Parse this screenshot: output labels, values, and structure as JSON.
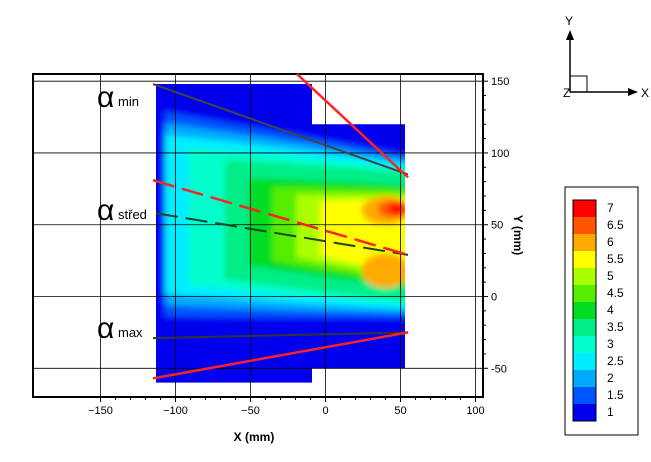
{
  "chart_data": {
    "type": "heatmap",
    "xlabel": "X (mm)",
    "ylabel": "Y (mm)",
    "xlim": [
      -195,
      105
    ],
    "ylim": [
      -70,
      155
    ],
    "x_ticks": [
      -150,
      -100,
      -50,
      0,
      50,
      100
    ],
    "y_ticks": [
      -50,
      0,
      50,
      100,
      150
    ],
    "grid": true,
    "x_tick_labels": [
      "−150",
      "−100",
      "−50",
      "0",
      "50",
      "100"
    ],
    "y_tick_labels": [
      "-50",
      "0",
      "50",
      "100",
      "150"
    ],
    "field": {
      "region": [
        [
          -113,
          148
        ],
        [
          -9,
          148
        ],
        [
          -9,
          120
        ],
        [
          53,
          120
        ],
        [
          53,
          -50
        ],
        [
          -9,
          -50
        ],
        [
          -9,
          -60
        ],
        [
          -113,
          -60
        ]
      ],
      "description_levels_min": 1,
      "description_levels_max": 7
    },
    "legend": {
      "placement": "right",
      "levels": [
        {
          "label": "7",
          "color": "#ff0000"
        },
        {
          "label": "6.5",
          "color": "#ff5500"
        },
        {
          "label": "6",
          "color": "#ffaa00"
        },
        {
          "label": "5.5",
          "color": "#ffff00"
        },
        {
          "label": "5",
          "color": "#aaff00"
        },
        {
          "label": "4.5",
          "color": "#55ee00"
        },
        {
          "label": "4",
          "color": "#00dd22"
        },
        {
          "label": "3.5",
          "color": "#00ee88"
        },
        {
          "label": "3",
          "color": "#00ffcc"
        },
        {
          "label": "2.5",
          "color": "#00eeff"
        },
        {
          "label": "2",
          "color": "#00aaff"
        },
        {
          "label": "1.5",
          "color": "#0055ff"
        },
        {
          "label": "1",
          "color": "#0000ee"
        }
      ]
    },
    "lines": [
      {
        "id": "alpha-min-line",
        "color": "#444444",
        "dashed": false,
        "points": [
          [
            -115,
            148
          ],
          [
            55,
            85
          ]
        ]
      },
      {
        "id": "alpha-min-red",
        "color": "#ff2222",
        "dashed": false,
        "points": [
          [
            -19,
            155
          ],
          [
            55,
            83
          ]
        ]
      },
      {
        "id": "alpha-stred-dark",
        "color": "#224422",
        "dashed": true,
        "points": [
          [
            -113,
            58
          ],
          [
            55,
            29
          ]
        ]
      },
      {
        "id": "alpha-stred-red",
        "color": "#ff2222",
        "dashed": true,
        "points": [
          [
            -115,
            81
          ],
          [
            55,
            29
          ]
        ]
      },
      {
        "id": "alpha-max-dark",
        "color": "#333333",
        "dashed": false,
        "points": [
          [
            -115,
            -29
          ],
          [
            55,
            -25
          ]
        ]
      },
      {
        "id": "alpha-max-red",
        "color": "#ff2222",
        "dashed": false,
        "points": [
          [
            -115,
            -57
          ],
          [
            55,
            -25
          ]
        ]
      }
    ],
    "annotations": [
      {
        "id": "alpha-min",
        "symbol": "α",
        "sub": "min"
      },
      {
        "id": "alpha-stred",
        "symbol": "α",
        "sub": "střed"
      },
      {
        "id": "alpha-max",
        "symbol": "α",
        "sub": "max"
      }
    ]
  },
  "triad": {
    "y_label": "Y",
    "x_label": "X",
    "z_label": "Z"
  },
  "colors": {
    "axes": "#000000",
    "grid": "#000000",
    "field_bg": "#0000ee"
  }
}
